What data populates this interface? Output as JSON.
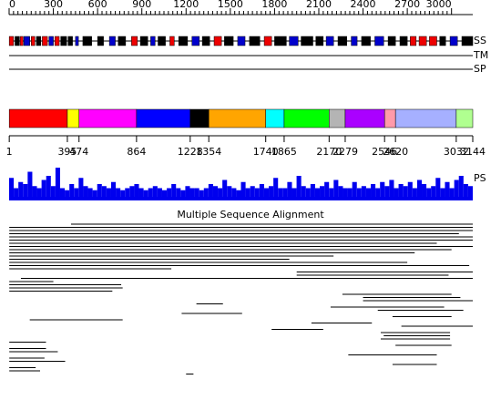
{
  "ruler": {
    "lim": [
      0,
      3144
    ],
    "ticks": [
      0,
      300,
      600,
      900,
      1200,
      1500,
      1800,
      2100,
      2400,
      2700,
      3000
    ]
  },
  "tracks": {
    "ss": {
      "label": "SS",
      "colors": {
        "H": "#ee0000",
        "E": "#0000cc",
        "C": "#000000"
      },
      "segments": [
        [
          1,
          30,
          "H"
        ],
        [
          40,
          70,
          "C"
        ],
        [
          75,
          95,
          "H"
        ],
        [
          100,
          140,
          "E"
        ],
        [
          150,
          175,
          "H"
        ],
        [
          185,
          215,
          "C"
        ],
        [
          225,
          260,
          "H"
        ],
        [
          270,
          300,
          "E"
        ],
        [
          310,
          340,
          "H"
        ],
        [
          350,
          390,
          "C"
        ],
        [
          400,
          430,
          "C"
        ],
        [
          450,
          470,
          "E"
        ],
        [
          500,
          560,
          "C"
        ],
        [
          600,
          640,
          "C"
        ],
        [
          680,
          720,
          "E"
        ],
        [
          740,
          790,
          "C"
        ],
        [
          830,
          870,
          "H"
        ],
        [
          890,
          940,
          "C"
        ],
        [
          960,
          990,
          "E"
        ],
        [
          1010,
          1060,
          "C"
        ],
        [
          1090,
          1120,
          "H"
        ],
        [
          1150,
          1210,
          "C"
        ],
        [
          1240,
          1290,
          "E"
        ],
        [
          1310,
          1360,
          "C"
        ],
        [
          1390,
          1440,
          "H"
        ],
        [
          1460,
          1520,
          "C"
        ],
        [
          1550,
          1600,
          "E"
        ],
        [
          1630,
          1700,
          "C"
        ],
        [
          1730,
          1780,
          "H"
        ],
        [
          1800,
          1880,
          "C"
        ],
        [
          1900,
          1960,
          "E"
        ],
        [
          1980,
          2060,
          "C"
        ],
        [
          2080,
          2130,
          "C"
        ],
        [
          2150,
          2200,
          "E"
        ],
        [
          2230,
          2290,
          "C"
        ],
        [
          2320,
          2360,
          "E"
        ],
        [
          2390,
          2450,
          "C"
        ],
        [
          2480,
          2540,
          "E"
        ],
        [
          2570,
          2620,
          "C"
        ],
        [
          2650,
          2700,
          "C"
        ],
        [
          2720,
          2760,
          "H"
        ],
        [
          2780,
          2830,
          "H"
        ],
        [
          2850,
          2900,
          "H"
        ],
        [
          2920,
          2960,
          "C"
        ],
        [
          2990,
          3040,
          "E"
        ],
        [
          3070,
          3144,
          "C"
        ]
      ]
    },
    "tm": {
      "label": "TM"
    },
    "sp": {
      "label": "SP"
    }
  },
  "domains": {
    "boundaries": [
      1,
      395,
      474,
      864,
      1228,
      1354,
      1740,
      1865,
      2170,
      2279,
      2546,
      2620,
      3032,
      3144
    ],
    "colors": [
      "#ff0000",
      "#ffff00",
      "#ff00ff",
      "#0000ff",
      "#000000",
      "#ffa500",
      "#00ffff",
      "#00ff00",
      "#b4b4b4",
      "#aa00ff",
      "#ff9aaa",
      "#a6b0ff",
      "#b0ff90"
    ]
  },
  "ps": {
    "label": "PS",
    "ylim": [
      0,
      1
    ],
    "values": [
      0.55,
      0.3,
      0.45,
      0.4,
      0.7,
      0.35,
      0.3,
      0.5,
      0.6,
      0.35,
      0.8,
      0.3,
      0.25,
      0.4,
      0.3,
      0.55,
      0.35,
      0.3,
      0.25,
      0.4,
      0.35,
      0.3,
      0.45,
      0.3,
      0.25,
      0.3,
      0.35,
      0.4,
      0.3,
      0.25,
      0.3,
      0.35,
      0.3,
      0.25,
      0.3,
      0.4,
      0.3,
      0.25,
      0.35,
      0.3,
      0.3,
      0.25,
      0.3,
      0.4,
      0.35,
      0.3,
      0.5,
      0.35,
      0.3,
      0.25,
      0.45,
      0.3,
      0.35,
      0.3,
      0.4,
      0.3,
      0.35,
      0.55,
      0.3,
      0.3,
      0.45,
      0.3,
      0.6,
      0.35,
      0.3,
      0.4,
      0.3,
      0.35,
      0.45,
      0.3,
      0.5,
      0.35,
      0.3,
      0.3,
      0.45,
      0.3,
      0.35,
      0.3,
      0.4,
      0.3,
      0.45,
      0.35,
      0.5,
      0.3,
      0.4,
      0.35,
      0.45,
      0.3,
      0.5,
      0.4,
      0.3,
      0.35,
      0.55,
      0.3,
      0.45,
      0.3,
      0.5,
      0.6,
      0.4,
      0.35
    ]
  },
  "msa": {
    "title": "Multiple Sequence Alignment",
    "rows": [
      [
        420,
        3144
      ],
      [
        1,
        3144
      ],
      [
        1,
        3144
      ],
      [
        1,
        3050
      ],
      [
        1,
        3144
      ],
      [
        1,
        3144
      ],
      [
        1,
        2900
      ],
      [
        1,
        3144
      ],
      [
        1,
        3000
      ],
      [
        1,
        2750
      ],
      [
        1,
        2200
      ],
      [
        1,
        1900
      ],
      [
        1,
        2700
      ],
      [
        1,
        3120
      ],
      [
        1,
        1100
      ],
      [
        1950,
        3144
      ],
      [
        1950,
        2980
      ],
      [
        80,
        3144
      ],
      [
        1,
        300
      ],
      [
        1,
        760
      ],
      [
        1,
        770
      ],
      [
        1,
        700
      ],
      [
        2260,
        3000
      ],
      [
        2400,
        3060
      ],
      [
        2400,
        3144
      ],
      [
        1270,
        1450
      ],
      [
        2180,
        2950
      ],
      [
        2500,
        3080
      ],
      [
        1170,
        1580
      ],
      [
        2600,
        3000
      ],
      [
        140,
        770
      ],
      [
        2050,
        2460
      ],
      [
        2660,
        3144
      ],
      [
        1780,
        2130
      ],
      [
        2520,
        2990
      ],
      [
        2540,
        2990
      ],
      [
        2520,
        2990
      ],
      [
        1,
        250
      ],
      [
        2620,
        3000
      ],
      [
        1,
        250
      ],
      [
        1,
        330
      ],
      [
        2300,
        2900
      ],
      [
        1,
        240
      ],
      [
        1,
        380
      ],
      [
        2600,
        2900
      ],
      [
        1,
        180
      ],
      [
        1,
        210
      ],
      [
        1200,
        1250
      ]
    ]
  }
}
